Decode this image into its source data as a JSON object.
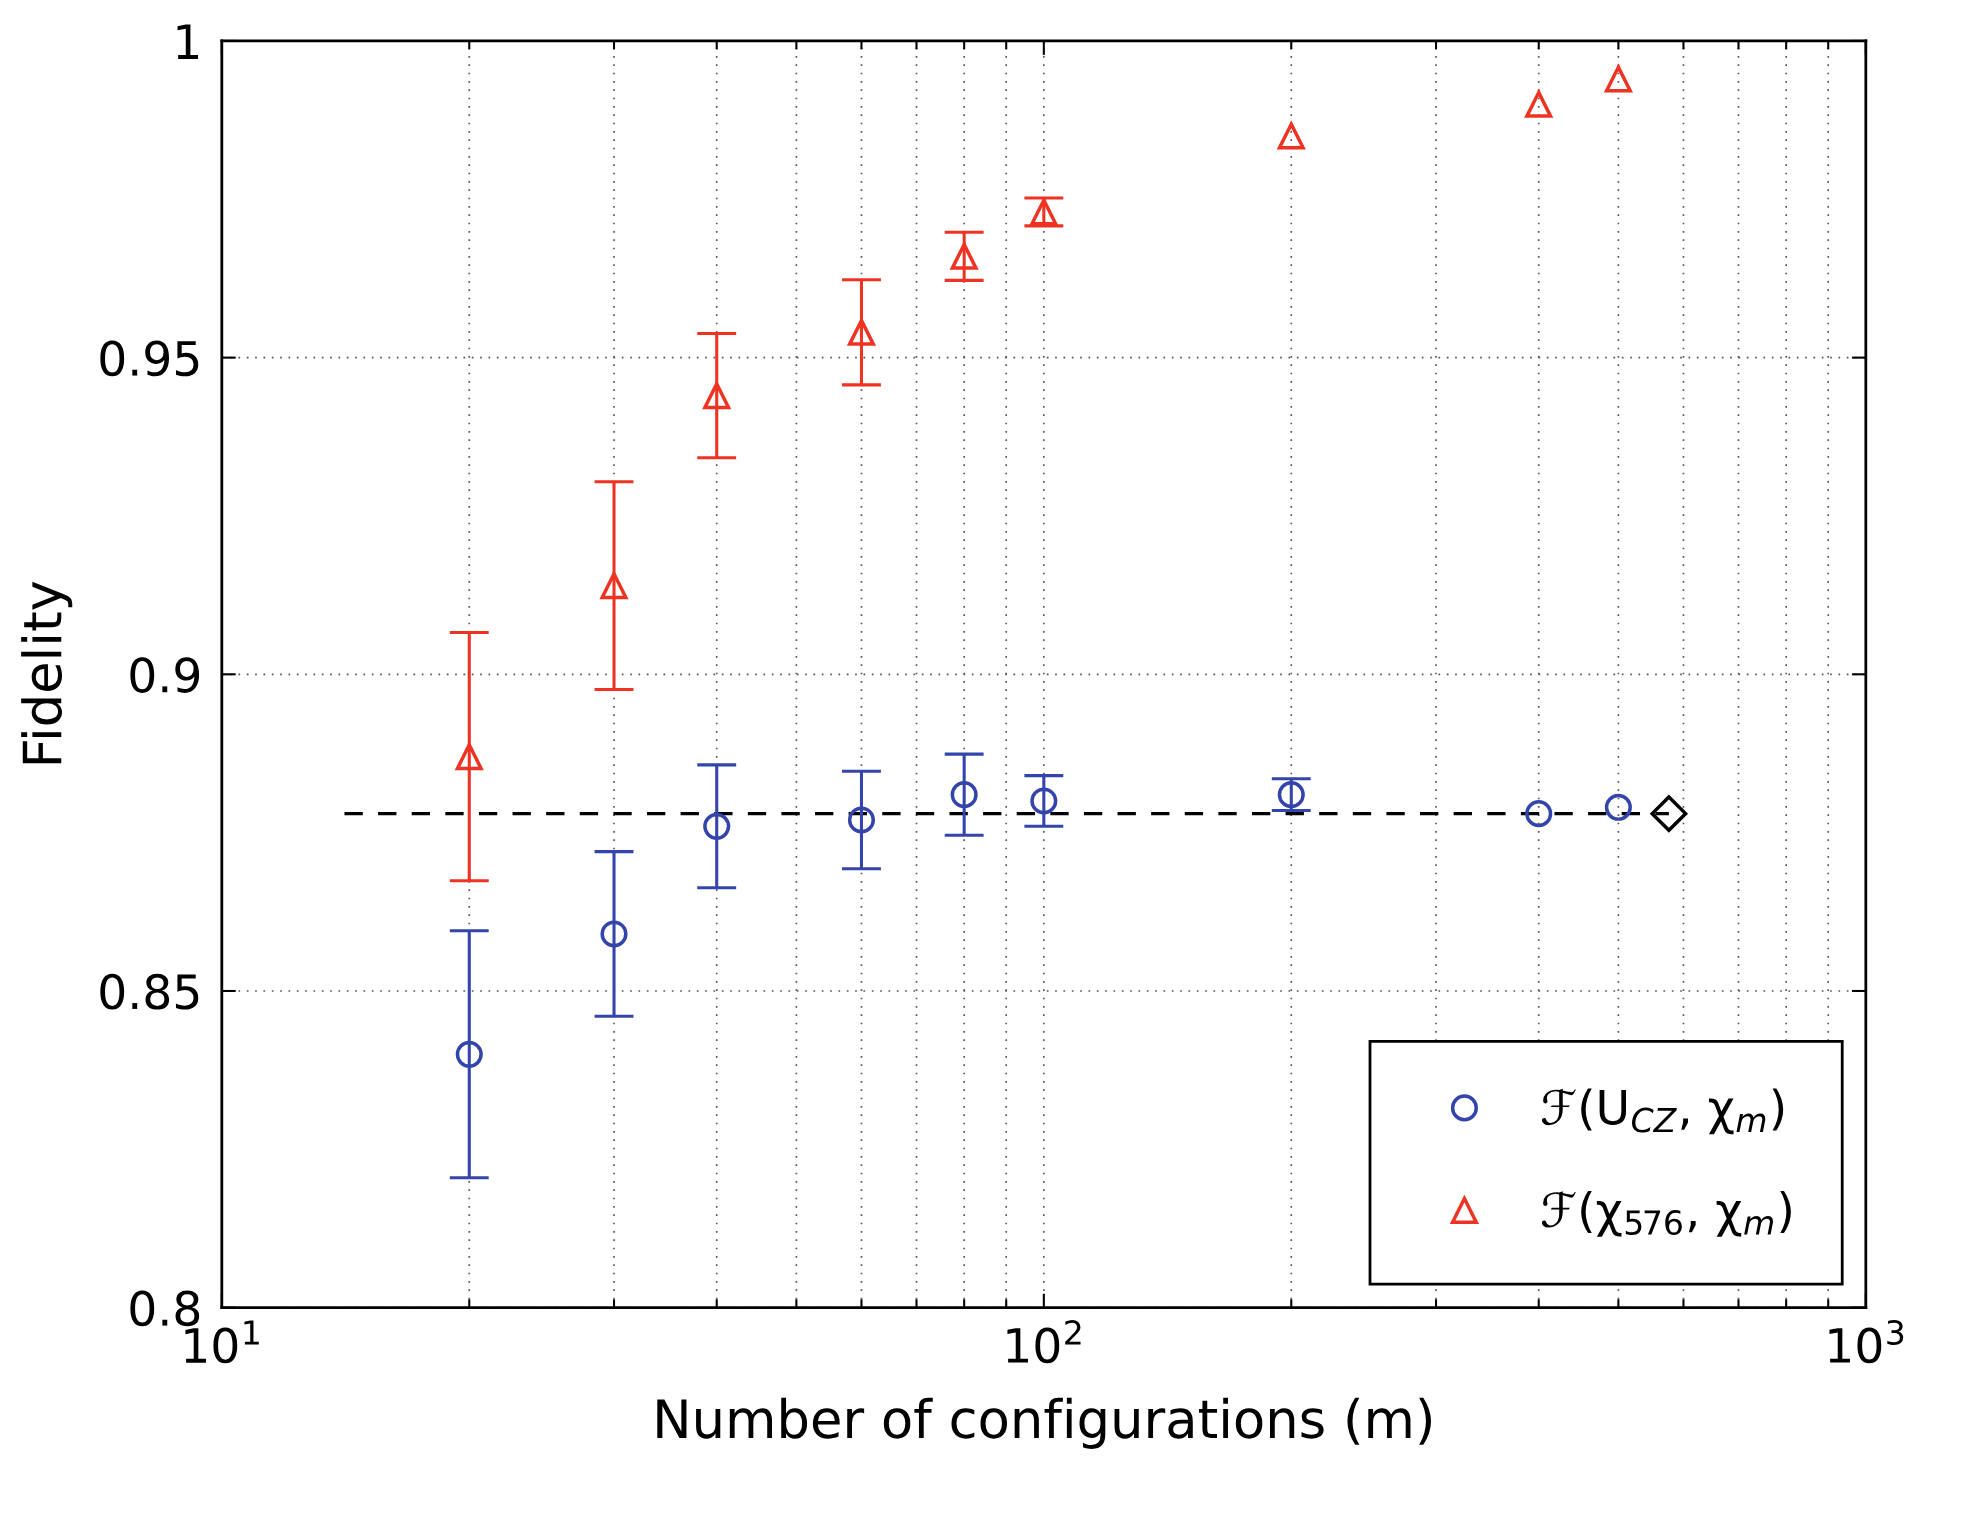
{
  "chart_data": {
    "type": "scatter",
    "xlabel": "Number of configurations (m)",
    "ylabel": "Fidelity",
    "log": "x",
    "grid": true,
    "legend": "bottom right",
    "xlim": [
      10,
      1000
    ],
    "xticks": [
      {
        "value": 10,
        "label": "10$^{1}$"
      },
      {
        "value": 100,
        "label": "10$^{2}$"
      },
      {
        "value": 1000,
        "label": "10$^{3}$"
      }
    ],
    "ylim": [
      0.8,
      1
    ],
    "yticks": [
      0.8,
      0.85,
      0.9,
      0.95,
      1
    ],
    "series": [
      {
        "type": "line",
        "color": "#000000",
        "line_style": "dashed",
        "marker": "none",
        "x": [
          14.1,
          576
        ],
        "values": [
          0.878,
          0.878
        ]
      },
      {
        "name": "ℱ(U$_{CZ}$, χ$_{m}$)",
        "color": "#3344aa",
        "marker": "circle",
        "x": [
          20,
          30,
          40,
          60,
          80,
          100,
          200,
          400,
          500
        ],
        "values": [
          0.84,
          0.859,
          0.876,
          0.877,
          0.881,
          0.88,
          0.881,
          0.878,
          0.879
        ],
        "errors": [
          0.0195,
          0.013,
          0.0097,
          0.0077,
          0.0064,
          0.004,
          0.0025,
          null,
          null
        ]
      },
      {
        "name": "ℱ(χ$_{576}$, χ$_{m}$)",
        "color": "#ee3322",
        "marker": "triangle",
        "x": [
          20,
          30,
          40,
          60,
          80,
          100,
          200,
          400,
          500
        ],
        "values": [
          0.887,
          0.914,
          0.944,
          0.954,
          0.966,
          0.973,
          0.985,
          0.99,
          0.994
        ],
        "errors": [
          0.0196,
          0.0164,
          0.0098,
          0.0083,
          0.0038,
          0.0022,
          null,
          null,
          null
        ]
      },
      {
        "color": "#000000",
        "marker": "diamond",
        "x": [
          576
        ],
        "values": [
          0.878
        ]
      }
    ]
  }
}
